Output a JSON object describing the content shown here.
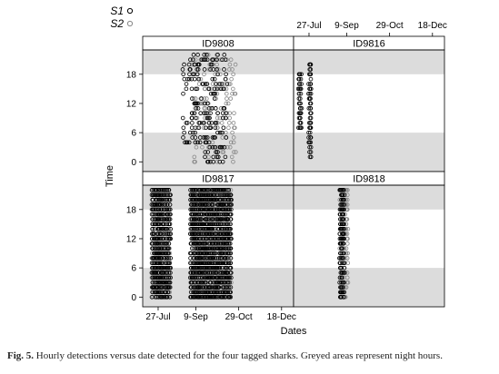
{
  "chart_data": {
    "type": "scatter",
    "ylabel": "Time",
    "xlabel": "Dates",
    "x_tick_labels": [
      "27-Jul",
      "9-Sep",
      "29-Oct",
      "18-Dec"
    ],
    "x_tick_dates": [
      "2006-07-27",
      "2006-09-09",
      "2006-10-29",
      "2006-12-18"
    ],
    "xlim": [
      "2006-07-09",
      "2007-01-01"
    ],
    "y_ticks": [
      0,
      6,
      12,
      18
    ],
    "ylim": [
      -2,
      23
    ],
    "night_hours_shaded": [
      [
        -2,
        6
      ],
      [
        18,
        23
      ]
    ],
    "legend": {
      "placement": "top-left",
      "entries": [
        {
          "label": "S1",
          "symbol": "open-circle",
          "color": "#000000"
        },
        {
          "label": "S2",
          "symbol": "open-circle",
          "color": "#888888"
        }
      ]
    },
    "panels": [
      {
        "name": "ID9808",
        "points": {
          "S1": [
            {
              "date_range": [
                "2006-08-25",
                "2006-09-20"
              ],
              "hour_range": [
                4,
                22
              ]
            },
            {
              "date_range": [
                "2006-09-20",
                "2006-10-15"
              ],
              "hour_range": [
                0,
                22
              ]
            }
          ],
          "S2": [
            {
              "date_range": [
                "2006-09-05",
                "2006-10-25"
              ],
              "hour_range": [
                0,
                22
              ]
            }
          ]
        }
      },
      {
        "name": "ID9816",
        "points": {
          "S1": [
            {
              "date_range": [
                "2006-07-15",
                "2006-07-18"
              ],
              "hour_range": [
                7,
                18
              ]
            },
            {
              "date_range": [
                "2006-07-27",
                "2006-07-29"
              ],
              "hour_range": [
                1,
                20
              ]
            }
          ],
          "S2": []
        }
      },
      {
        "name": "ID9817",
        "points": {
          "S1": [
            {
              "date_range": [
                "2006-07-20",
                "2006-08-10"
              ],
              "hour_range": [
                0,
                22
              ]
            },
            {
              "date_range": [
                "2006-09-03",
                "2006-10-20"
              ],
              "hour_range": [
                0,
                22
              ]
            }
          ],
          "S2": [
            {
              "date_range": [
                "2006-07-20",
                "2006-08-10"
              ],
              "hour_range": [
                0,
                22
              ]
            },
            {
              "date_range": [
                "2006-09-03",
                "2006-10-20"
              ],
              "hour_range": [
                0,
                22
              ]
            }
          ]
        }
      },
      {
        "name": "ID9818",
        "points": {
          "S1": [
            {
              "date_range": [
                "2006-09-01",
                "2006-09-06"
              ],
              "hour_range": [
                0,
                22
              ]
            }
          ],
          "S2": [
            {
              "date_range": [
                "2006-09-01",
                "2006-09-10"
              ],
              "hour_range": [
                0,
                22
              ]
            }
          ]
        }
      }
    ]
  },
  "caption": {
    "label": "Fig. 5.",
    "text": " Hourly detections versus date detected for the four tagged sharks. Greyed areas represent night hours."
  }
}
